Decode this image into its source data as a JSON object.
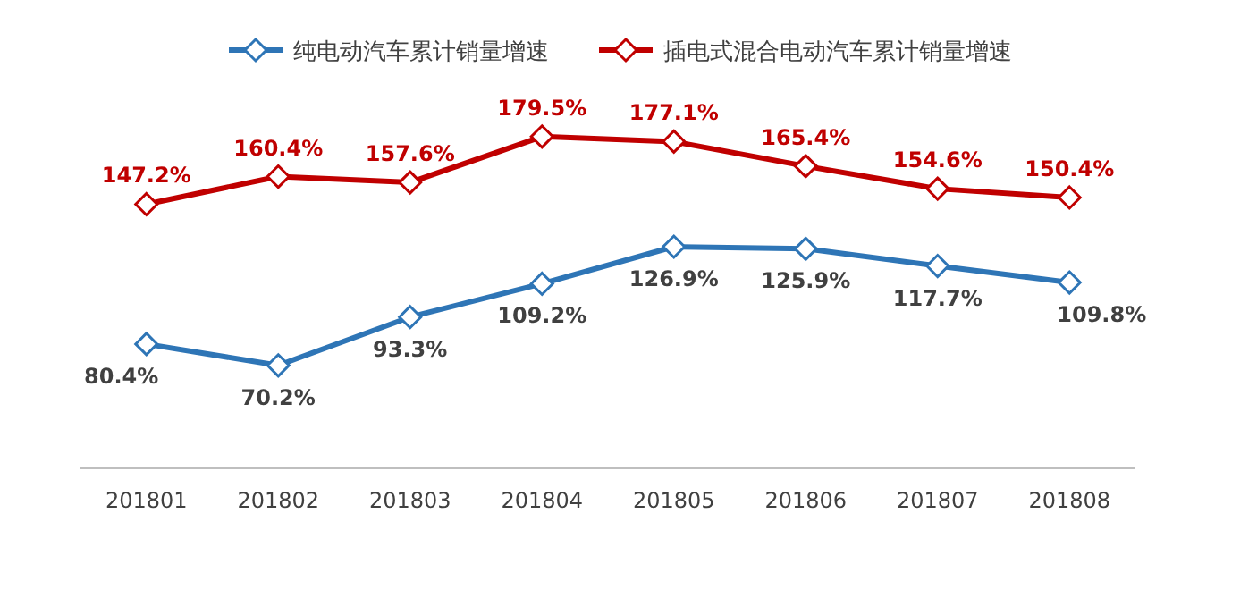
{
  "chart_data": {
    "type": "line",
    "categories": [
      "201801",
      "201802",
      "201803",
      "201804",
      "201805",
      "201806",
      "201807",
      "201808"
    ],
    "series": [
      {
        "name": "纯电动汽车累计销量增速",
        "color": "#2e75b6",
        "values": [
          80.4,
          70.2,
          93.3,
          109.2,
          126.9,
          125.9,
          117.7,
          109.8
        ],
        "value_labels": [
          "80.4%",
          "70.2%",
          "93.3%",
          "109.2%",
          "126.9%",
          "125.9%",
          "117.7%",
          "109.8%"
        ]
      },
      {
        "name": "插电式混合电动汽车累计销量增速",
        "color": "#c00000",
        "values": [
          147.2,
          160.4,
          157.6,
          179.5,
          177.1,
          165.4,
          154.6,
          150.4
        ],
        "value_labels": [
          "147.2%",
          "160.4%",
          "157.6%",
          "179.5%",
          "177.1%",
          "165.4%",
          "154.6%",
          "150.4%"
        ]
      }
    ],
    "marker": "diamond",
    "line_style": "solid",
    "legend": "top",
    "grid": false
  }
}
